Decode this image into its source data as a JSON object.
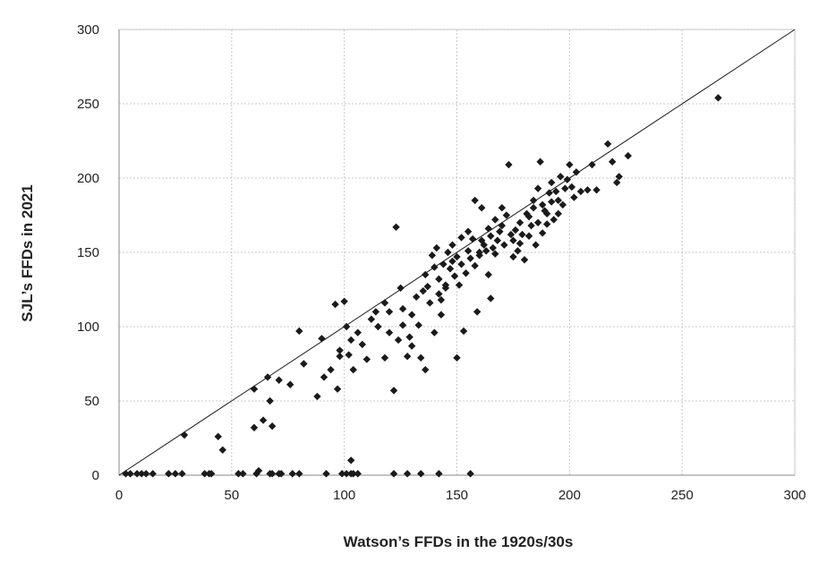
{
  "chart_data": {
    "type": "scatter",
    "xlabel": "Watson’s FFDs in the 1920s/30s",
    "ylabel": "SJL’s FFDs in 2021",
    "xlim": [
      0,
      300
    ],
    "ylim": [
      0,
      300
    ],
    "xticks": [
      0,
      50,
      100,
      150,
      200,
      250,
      300
    ],
    "yticks": [
      0,
      50,
      100,
      150,
      200,
      250,
      300
    ],
    "grid": true,
    "reference_line": {
      "x": [
        0,
        300
      ],
      "y": [
        0,
        300
      ]
    },
    "marker_color": "#1a1a1a",
    "points": [
      [
        3,
        1
      ],
      [
        5,
        1
      ],
      [
        8,
        1
      ],
      [
        10,
        1
      ],
      [
        12,
        1
      ],
      [
        15,
        1
      ],
      [
        22,
        1
      ],
      [
        25,
        1
      ],
      [
        28,
        1
      ],
      [
        38,
        1
      ],
      [
        40,
        1
      ],
      [
        41,
        1
      ],
      [
        53,
        1
      ],
      [
        55,
        1
      ],
      [
        61,
        1
      ],
      [
        62,
        3
      ],
      [
        67,
        1
      ],
      [
        68,
        1
      ],
      [
        71,
        1
      ],
      [
        72,
        1
      ],
      [
        77,
        1
      ],
      [
        80,
        1
      ],
      [
        92,
        1
      ],
      [
        99,
        1
      ],
      [
        101,
        1
      ],
      [
        103,
        1
      ],
      [
        104,
        1
      ],
      [
        106,
        1
      ],
      [
        122,
        1
      ],
      [
        128,
        1
      ],
      [
        134,
        1
      ],
      [
        142,
        1
      ],
      [
        156,
        1
      ],
      [
        103,
        10
      ],
      [
        29,
        27
      ],
      [
        44,
        26
      ],
      [
        46,
        17
      ],
      [
        60,
        32
      ],
      [
        64,
        37
      ],
      [
        68,
        33
      ],
      [
        60,
        58
      ],
      [
        67,
        50
      ],
      [
        66,
        66
      ],
      [
        71,
        64
      ],
      [
        76,
        61
      ],
      [
        80,
        97
      ],
      [
        82,
        75
      ],
      [
        88,
        53
      ],
      [
        90,
        92
      ],
      [
        91,
        66
      ],
      [
        94,
        71
      ],
      [
        97,
        58
      ],
      [
        98,
        80
      ],
      [
        100,
        117
      ],
      [
        96,
        115
      ],
      [
        98,
        84
      ],
      [
        101,
        100
      ],
      [
        102,
        81
      ],
      [
        103,
        91
      ],
      [
        104,
        71
      ],
      [
        106,
        96
      ],
      [
        108,
        88
      ],
      [
        110,
        78
      ],
      [
        112,
        105
      ],
      [
        115,
        100
      ],
      [
        118,
        79
      ],
      [
        120,
        110
      ],
      [
        122,
        57
      ],
      [
        124,
        91
      ],
      [
        125,
        126
      ],
      [
        126,
        101
      ],
      [
        128,
        80
      ],
      [
        129,
        93
      ],
      [
        130,
        87
      ],
      [
        132,
        120
      ],
      [
        133,
        101
      ],
      [
        134,
        79
      ],
      [
        136,
        71
      ],
      [
        136,
        135
      ],
      [
        137,
        127
      ],
      [
        138,
        116
      ],
      [
        139,
        148
      ],
      [
        140,
        140
      ],
      [
        141,
        153
      ],
      [
        142,
        132
      ],
      [
        143,
        118
      ],
      [
        144,
        142
      ],
      [
        145,
        128
      ],
      [
        146,
        150
      ],
      [
        147,
        139
      ],
      [
        148,
        155
      ],
      [
        149,
        134
      ],
      [
        150,
        147
      ],
      [
        151,
        128
      ],
      [
        152,
        142
      ],
      [
        153,
        97
      ],
      [
        150,
        79
      ],
      [
        154,
        136
      ],
      [
        155,
        151
      ],
      [
        156,
        146
      ],
      [
        157,
        159
      ],
      [
        158,
        141
      ],
      [
        159,
        110
      ],
      [
        160,
        148
      ],
      [
        161,
        158
      ],
      [
        162,
        155
      ],
      [
        163,
        151
      ],
      [
        164,
        135
      ],
      [
        165,
        161
      ],
      [
        166,
        153
      ],
      [
        167,
        149
      ],
      [
        168,
        158
      ],
      [
        169,
        164
      ],
      [
        170,
        168
      ],
      [
        171,
        155
      ],
      [
        172,
        175
      ],
      [
        173,
        209
      ],
      [
        174,
        162
      ],
      [
        175,
        158
      ],
      [
        176,
        165
      ],
      [
        177,
        151
      ],
      [
        178,
        170
      ],
      [
        179,
        162
      ],
      [
        180,
        145
      ],
      [
        181,
        176
      ],
      [
        182,
        161
      ],
      [
        183,
        168
      ],
      [
        184,
        180
      ],
      [
        185,
        155
      ],
      [
        186,
        170
      ],
      [
        187,
        211
      ],
      [
        188,
        163
      ],
      [
        189,
        178
      ],
      [
        190,
        169
      ],
      [
        191,
        190
      ],
      [
        192,
        184
      ],
      [
        193,
        172
      ],
      [
        194,
        191
      ],
      [
        195,
        185
      ],
      [
        196,
        201
      ],
      [
        197,
        182
      ],
      [
        198,
        193
      ],
      [
        199,
        199
      ],
      [
        200,
        209
      ],
      [
        201,
        194
      ],
      [
        202,
        187
      ],
      [
        203,
        204
      ],
      [
        205,
        191
      ],
      [
        208,
        192
      ],
      [
        210,
        209
      ],
      [
        212,
        192
      ],
      [
        217,
        223
      ],
      [
        219,
        211
      ],
      [
        221,
        197
      ],
      [
        222,
        201
      ],
      [
        226,
        215
      ],
      [
        266,
        254
      ],
      [
        123,
        167
      ],
      [
        161,
        180
      ],
      [
        158,
        185
      ],
      [
        165,
        119
      ],
      [
        143,
        108
      ],
      [
        140,
        96
      ],
      [
        118,
        116
      ],
      [
        114,
        110
      ],
      [
        120,
        96
      ],
      [
        130,
        108
      ],
      [
        126,
        112
      ],
      [
        135,
        124
      ],
      [
        142,
        122
      ],
      [
        145,
        126
      ],
      [
        148,
        144
      ],
      [
        152,
        160
      ],
      [
        155,
        164
      ],
      [
        160,
        150
      ],
      [
        164,
        166
      ],
      [
        167,
        172
      ],
      [
        170,
        180
      ],
      [
        175,
        147
      ],
      [
        178,
        156
      ],
      [
        182,
        174
      ],
      [
        184,
        185
      ],
      [
        186,
        193
      ],
      [
        188,
        182
      ],
      [
        190,
        176
      ],
      [
        192,
        197
      ],
      [
        195,
        176
      ]
    ]
  }
}
